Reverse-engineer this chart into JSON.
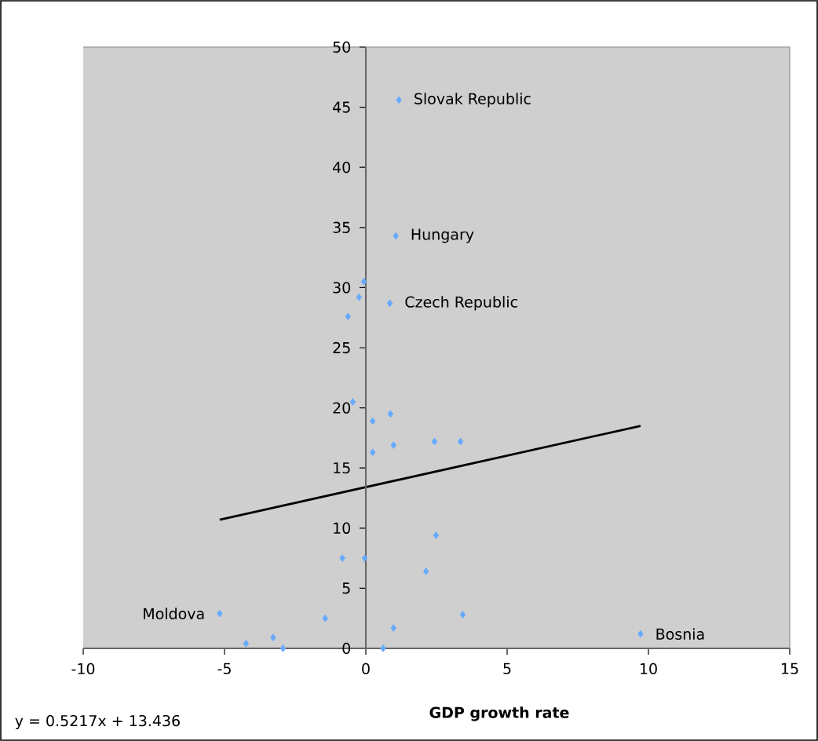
{
  "chart_data": {
    "type": "scatter",
    "xlabel": "GDP growth rate",
    "xlim": [
      -10,
      15
    ],
    "ylim": [
      0,
      50
    ],
    "xticks": [
      -10,
      -5,
      0,
      5,
      10,
      15
    ],
    "yticks": [
      0,
      5,
      10,
      15,
      20,
      25,
      30,
      35,
      40,
      45,
      50
    ],
    "marker": "diamond",
    "series": [
      {
        "color": "#66aaff",
        "x": [
          1.17,
          1.06,
          -0.07,
          -0.24,
          -0.63,
          0.85,
          -0.46,
          0.24,
          0.87,
          0.24,
          0.98,
          2.43,
          3.35,
          2.48,
          2.13,
          -0.83,
          -0.04,
          -1.44,
          0.98,
          3.43,
          0.61,
          -5.17,
          -4.24,
          -3.28,
          -2.93,
          9.72
        ],
        "values": [
          45.6,
          34.3,
          30.5,
          29.2,
          27.6,
          28.7,
          20.5,
          18.9,
          19.5,
          16.3,
          16.9,
          17.2,
          17.2,
          9.4,
          6.4,
          7.5,
          7.5,
          2.5,
          1.7,
          2.8,
          0.0,
          2.9,
          0.4,
          0.9,
          0.0,
          1.2
        ]
      },
      {
        "type": "line",
        "marker": "none",
        "color": "#000000",
        "x": [
          -5.17,
          9.72
        ],
        "values": [
          10.7,
          18.5
        ]
      }
    ],
    "annotations": [
      {
        "text": "Slovak Republic",
        "x": 1.17,
        "y": 45.6
      },
      {
        "text": "Hungary",
        "x": 1.06,
        "y": 34.3
      },
      {
        "text": "Czech Republic",
        "x": 0.85,
        "y": 28.7
      },
      {
        "text": "Moldova",
        "x": -5.17,
        "y": 2.9
      },
      {
        "text": "Bosnia",
        "x": 9.72,
        "y": 1.2
      },
      "y = 0.5217x + 13.436"
    ]
  }
}
